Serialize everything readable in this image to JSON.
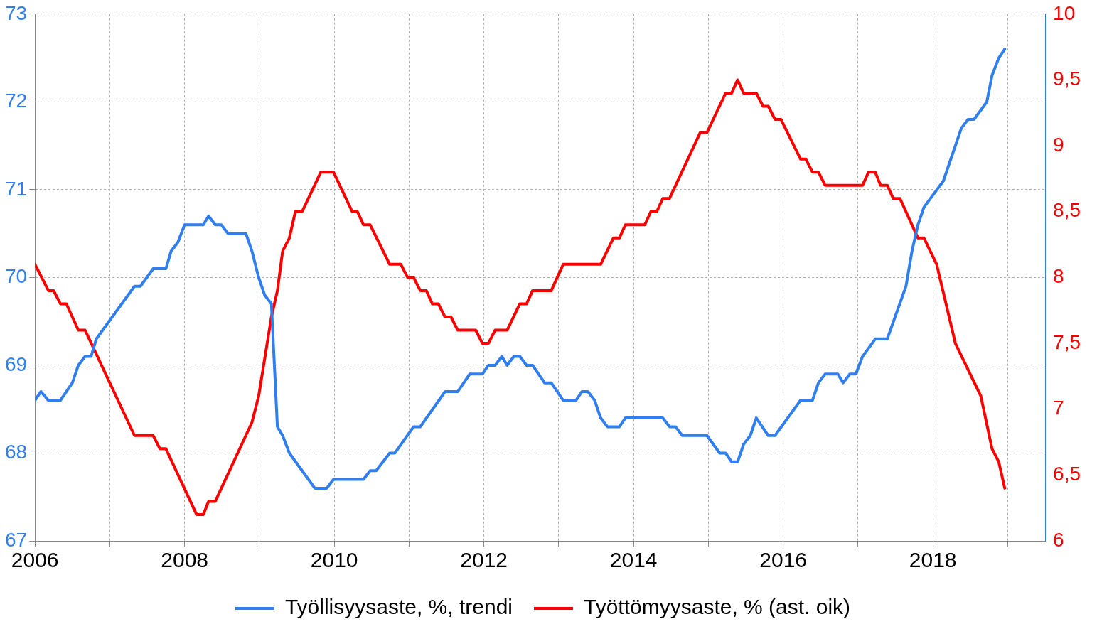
{
  "chart_data": {
    "type": "line",
    "xlim": [
      2006,
      2019.5
    ],
    "xticks": [
      2006,
      {
        "value": 2007,
        "label": null
      },
      2008,
      {
        "value": 2009,
        "label": null
      },
      2010,
      {
        "value": 2011,
        "label": null
      },
      2012,
      {
        "value": 2013,
        "label": null
      },
      2014,
      {
        "value": 2015,
        "label": null
      },
      2016,
      {
        "value": 2017,
        "label": null
      },
      2018,
      {
        "value": 2019,
        "label": null
      }
    ],
    "ylim": [
      67,
      73
    ],
    "yticks": [
      67,
      68,
      69,
      70,
      71,
      72,
      73
    ],
    "y2lim": [
      6,
      10
    ],
    "y2ticks": [
      6,
      {
        "value": 6.5,
        "label": "6,5"
      },
      7,
      {
        "value": 7.5,
        "label": "7,5"
      },
      8,
      {
        "value": 8.5,
        "label": "8,5"
      },
      9,
      {
        "value": 9.5,
        "label": "9,5"
      },
      10
    ],
    "grid": true,
    "legend": "bottom",
    "marker": "none",
    "line_style": "solid",
    "series": [
      {
        "name": "Työllisyysaste, %, trendi",
        "color": "#2f7ff0",
        "x": [
          2006,
          2006.08,
          2006.18,
          2006.34,
          2006.5,
          2006.58,
          2006.67,
          2006.75,
          2006.82,
          2007.33,
          2007.41,
          2007.58,
          2007.75,
          2007.82,
          2007.91,
          2008,
          2008.25,
          2008.32,
          2008.41,
          2008.49,
          2008.58,
          2008.82,
          2008.9,
          2008.99,
          2009.07,
          2009.16,
          2009.24,
          2009.31,
          2009.4,
          2009.74,
          2009.9,
          2009.99,
          2010.39,
          2010.48,
          2010.56,
          2010.74,
          2010.81,
          2011.06,
          2011.15,
          2011.48,
          2011.65,
          2011.81,
          2011.98,
          2012.06,
          2012.15,
          2012.24,
          2012.31,
          2012.4,
          2012.48,
          2012.57,
          2012.65,
          2012.81,
          2012.9,
          2013.06,
          2013.23,
          2013.31,
          2013.39,
          2013.48,
          2013.56,
          2013.65,
          2013.81,
          2013.89,
          2014.39,
          2014.48,
          2014.56,
          2014.65,
          2014.98,
          2015.15,
          2015.23,
          2015.31,
          2015.39,
          2015.47,
          2015.56,
          2015.64,
          2015.8,
          2015.89,
          2016.23,
          2016.39,
          2016.47,
          2016.56,
          2016.73,
          2016.8,
          2016.89,
          2016.97,
          2017.06,
          2017.23,
          2017.39,
          2017.64,
          2017.72,
          2017.8,
          2017.88,
          2018.14,
          2018.38,
          2018.47,
          2018.55,
          2018.72,
          2018.79,
          2018.88,
          2018.96
        ],
        "values": [
          68.6,
          68.7,
          68.6,
          68.6,
          68.8,
          69.0,
          69.1,
          69.1,
          69.3,
          69.9,
          69.9,
          70.1,
          70.1,
          70.3,
          70.4,
          70.6,
          70.6,
          70.7,
          70.6,
          70.6,
          70.5,
          70.5,
          70.3,
          70.0,
          69.8,
          69.7,
          68.3,
          68.2,
          68.0,
          67.6,
          67.6,
          67.7,
          67.7,
          67.8,
          67.8,
          68.0,
          68.0,
          68.3,
          68.3,
          68.7,
          68.7,
          68.9,
          68.9,
          69.0,
          69.0,
          69.1,
          69.0,
          69.1,
          69.1,
          69.0,
          69.0,
          68.8,
          68.8,
          68.6,
          68.6,
          68.7,
          68.7,
          68.6,
          68.4,
          68.3,
          68.3,
          68.4,
          68.4,
          68.3,
          68.3,
          68.2,
          68.2,
          68.0,
          68.0,
          67.9,
          67.9,
          68.1,
          68.2,
          68.4,
          68.2,
          68.2,
          68.6,
          68.6,
          68.8,
          68.9,
          68.9,
          68.8,
          68.9,
          68.9,
          69.1,
          69.3,
          69.3,
          69.9,
          70.3,
          70.6,
          70.8,
          71.1,
          71.7,
          71.8,
          71.8,
          72.0,
          72.3,
          72.5,
          72.6
        ]
      },
      {
        "name": "Työttömyysaste, % (ast. oik)",
        "color": "#ff0000",
        "axis": "y2",
        "x": [
          2006,
          2006.18,
          2006.25,
          2006.34,
          2006.42,
          2006.58,
          2006.67,
          2007.33,
          2007.58,
          2007.67,
          2007.75,
          2008.16,
          2008.25,
          2008.32,
          2008.41,
          2008.9,
          2008.99,
          2009.16,
          2009.24,
          2009.31,
          2009.4,
          2009.48,
          2009.57,
          2009.82,
          2009.99,
          2010.24,
          2010.31,
          2010.39,
          2010.48,
          2010.74,
          2010.89,
          2010.98,
          2011.06,
          2011.15,
          2011.23,
          2011.31,
          2011.39,
          2011.48,
          2011.56,
          2011.65,
          2011.89,
          2011.98,
          2012.06,
          2012.15,
          2012.31,
          2012.48,
          2012.57,
          2012.65,
          2012.9,
          2013.06,
          2013.56,
          2013.73,
          2013.81,
          2013.89,
          2014.15,
          2014.23,
          2014.31,
          2014.39,
          2014.48,
          2014.89,
          2014.98,
          2015.23,
          2015.31,
          2015.39,
          2015.47,
          2015.64,
          2015.73,
          2015.8,
          2015.89,
          2015.97,
          2016.23,
          2016.3,
          2016.39,
          2016.47,
          2016.56,
          2017.06,
          2017.14,
          2017.23,
          2017.3,
          2017.39,
          2017.47,
          2017.56,
          2017.8,
          2017.88,
          2018.05,
          2018.3,
          2018.64,
          2018.79,
          2018.88,
          2018.96
        ],
        "values": [
          8.1,
          7.9,
          7.9,
          7.8,
          7.8,
          7.6,
          7.6,
          6.8,
          6.8,
          6.7,
          6.7,
          6.2,
          6.2,
          6.3,
          6.3,
          6.9,
          7.1,
          7.7,
          7.9,
          8.2,
          8.3,
          8.5,
          8.5,
          8.8,
          8.8,
          8.5,
          8.5,
          8.4,
          8.4,
          8.1,
          8.1,
          8.0,
          8.0,
          7.9,
          7.9,
          7.8,
          7.8,
          7.7,
          7.7,
          7.6,
          7.6,
          7.5,
          7.5,
          7.6,
          7.6,
          7.8,
          7.8,
          7.9,
          7.9,
          8.1,
          8.1,
          8.3,
          8.3,
          8.4,
          8.4,
          8.5,
          8.5,
          8.6,
          8.6,
          9.1,
          9.1,
          9.4,
          9.4,
          9.5,
          9.4,
          9.4,
          9.3,
          9.3,
          9.2,
          9.2,
          8.9,
          8.9,
          8.8,
          8.8,
          8.7,
          8.7,
          8.8,
          8.8,
          8.7,
          8.7,
          8.6,
          8.6,
          8.3,
          8.3,
          8.1,
          7.5,
          7.1,
          6.7,
          6.6,
          6.4
        ]
      }
    ]
  }
}
